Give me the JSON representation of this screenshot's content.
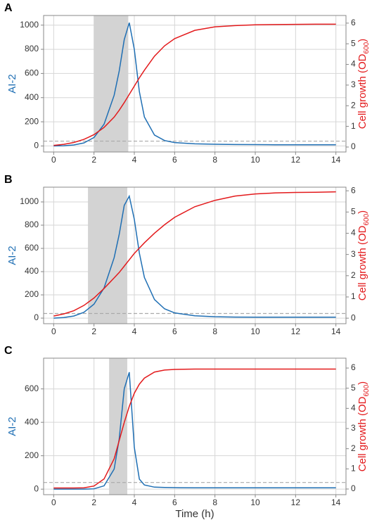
{
  "chart_data": [
    {
      "type": "line",
      "panel": "A",
      "x": [
        0,
        0.5,
        1,
        1.5,
        2,
        2.5,
        3,
        3.25,
        3.5,
        3.75,
        4,
        4.25,
        4.5,
        5,
        5.5,
        6,
        7,
        8,
        9,
        10,
        11,
        12,
        13,
        14
      ],
      "series": [
        {
          "color": "#1f6fb4",
          "values": [
            0,
            2,
            8,
            25,
            70,
            180,
            420,
            620,
            880,
            1020,
            800,
            450,
            240,
            90,
            45,
            28,
            18,
            14,
            12,
            11,
            10,
            10,
            10,
            10
          ]
        },
        {
          "color": "#e31a1c",
          "axis": "y2",
          "values": [
            0.08,
            0.13,
            0.22,
            0.37,
            0.6,
            0.95,
            1.45,
            1.78,
            2.15,
            2.55,
            2.95,
            3.35,
            3.72,
            4.4,
            4.9,
            5.25,
            5.65,
            5.82,
            5.88,
            5.92,
            5.93,
            5.94,
            5.95,
            5.95
          ]
        }
      ],
      "ylabel": "AI-2",
      "y2label": [
        "Cell growth (OD",
        "600",
        ")"
      ],
      "xlim": [
        -0.5,
        14.5
      ],
      "xticks": [
        0,
        2,
        4,
        6,
        8,
        10,
        12,
        14
      ],
      "ylim": [
        -50,
        1080
      ],
      "yticks": [
        0,
        200,
        400,
        600,
        800,
        1000
      ],
      "y2lim": [
        -0.24,
        6.37
      ],
      "y2ticks": [
        0,
        1,
        2,
        3,
        4,
        5,
        6
      ],
      "shade": [
        2,
        3.7
      ],
      "threshold": 40,
      "grid": true
    },
    {
      "type": "line",
      "panel": "B",
      "x": [
        0,
        0.5,
        1,
        1.5,
        2,
        2.5,
        3,
        3.25,
        3.5,
        3.75,
        4,
        4.25,
        4.5,
        5,
        5.5,
        6,
        7,
        8,
        9,
        10,
        11,
        12,
        13,
        14
      ],
      "series": [
        {
          "color": "#1f6fb4",
          "values": [
            0,
            5,
            18,
            50,
            120,
            260,
            520,
            720,
            970,
            1050,
            850,
            560,
            350,
            160,
            80,
            45,
            20,
            12,
            9,
            8,
            8,
            8,
            8,
            8
          ]
        },
        {
          "color": "#e31a1c",
          "axis": "y2",
          "values": [
            0.1,
            0.2,
            0.35,
            0.6,
            0.95,
            1.4,
            1.9,
            2.15,
            2.45,
            2.75,
            3.05,
            3.3,
            3.55,
            4.0,
            4.4,
            4.75,
            5.25,
            5.55,
            5.75,
            5.85,
            5.9,
            5.92,
            5.93,
            5.95
          ]
        }
      ],
      "ylabel": "AI-2",
      "y2label": [
        "Cell growth (OD",
        "600",
        ")"
      ],
      "xlim": [
        -0.5,
        14.5
      ],
      "xticks": [
        0,
        2,
        4,
        6,
        8,
        10,
        12,
        14
      ],
      "ylim": [
        -48,
        1127
      ],
      "yticks": [
        0,
        200,
        400,
        600,
        800,
        1000
      ],
      "y2lim": [
        -0.26,
        6.17
      ],
      "y2ticks": [
        0,
        1,
        2,
        3,
        4,
        5,
        6
      ],
      "shade": [
        1.7,
        3.65
      ],
      "threshold": 40,
      "grid": true
    },
    {
      "type": "line",
      "panel": "C",
      "x": [
        0,
        0.5,
        1,
        1.5,
        2,
        2.5,
        3,
        3.25,
        3.5,
        3.75,
        4,
        4.25,
        4.5,
        5,
        5.5,
        6,
        7,
        8,
        9,
        10,
        11,
        12,
        13,
        14
      ],
      "series": [
        {
          "color": "#1f6fb4",
          "values": [
            0,
            0,
            0,
            0,
            2,
            20,
            120,
            300,
            600,
            700,
            250,
            60,
            25,
            12,
            10,
            9,
            8,
            8,
            8,
            8,
            8,
            8,
            8,
            8
          ]
        },
        {
          "color": "#e31a1c",
          "axis": "y2",
          "values": [
            0.05,
            0.05,
            0.05,
            0.06,
            0.15,
            0.5,
            1.5,
            2.4,
            3.3,
            4.1,
            4.75,
            5.2,
            5.5,
            5.8,
            5.9,
            5.93,
            5.95,
            5.95,
            5.95,
            5.95,
            5.95,
            5.95,
            5.95,
            5.95
          ]
        }
      ],
      "ylabel": "AI-2",
      "y2label": [
        "Cell growth (OD",
        "600",
        ")"
      ],
      "xlabel": "Time (h)",
      "xlim": [
        -0.5,
        14.5
      ],
      "xticks": [
        0,
        2,
        4,
        6,
        8,
        10,
        12,
        14
      ],
      "ylim": [
        -33,
        784
      ],
      "yticks": [
        0,
        200,
        400,
        600
      ],
      "y2lim": [
        -0.28,
        6.49
      ],
      "y2ticks": [
        0,
        1,
        2,
        3,
        4,
        5,
        6
      ],
      "shade": [
        2.75,
        3.65
      ],
      "threshold": 40,
      "grid": true
    }
  ]
}
